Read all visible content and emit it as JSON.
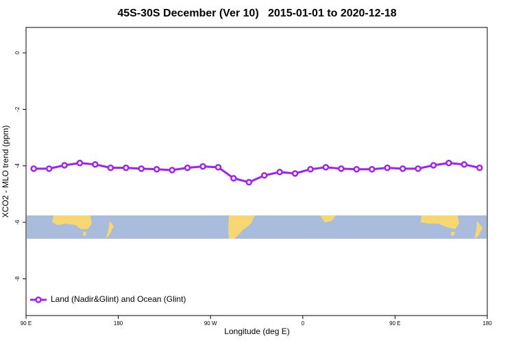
{
  "chart_data": {
    "type": "line",
    "title": "45S-30S December (Ver 10)   2015-01-01 to 2020-12-18",
    "x_label": "Longitude (deg E)",
    "y_label": "XCO2 - MLO trend (ppm)",
    "x": [
      97.5,
      112.5,
      127.5,
      142.5,
      157.5,
      172.5,
      187.5,
      202.5,
      217.5,
      232.5,
      247.5,
      262.5,
      277.5,
      292.5,
      307.5,
      322.5,
      337.5,
      352.5,
      367.5,
      382.5,
      397.5,
      412.5,
      427.5,
      442.5,
      457.5,
      472.5,
      487.5,
      502.5,
      517.5,
      532.5
    ],
    "series": [
      {
        "name": "Land (Nadir&Glint) and Ocean (Glint)",
        "color": "#a020f0",
        "values": [
          -4.1,
          -4.1,
          -3.98,
          -3.9,
          -3.95,
          -4.07,
          -4.07,
          -4.1,
          -4.12,
          -4.15,
          -4.07,
          -4.02,
          -4.05,
          -4.44,
          -4.58,
          -4.34,
          -4.22,
          -4.27,
          -4.12,
          -4.05,
          -4.1,
          -4.12,
          -4.12,
          -4.07,
          -4.1,
          -4.1,
          -3.98,
          -3.9,
          -3.95,
          -4.07
        ]
      }
    ],
    "xlim": [
      90,
      540
    ],
    "ylim": [
      -9.3,
      0.9
    ],
    "xticks": [
      {
        "value": 90,
        "label": "90 E"
      },
      {
        "value": 180,
        "label": "180"
      },
      {
        "value": 270,
        "label": "90 W"
      },
      {
        "value": 360,
        "label": "0"
      },
      {
        "value": 450,
        "label": "90 E"
      },
      {
        "value": 540,
        "label": "180"
      }
    ],
    "yticks": [
      0,
      -2,
      -4,
      -6,
      -8
    ],
    "legend": "bottom-left"
  }
}
